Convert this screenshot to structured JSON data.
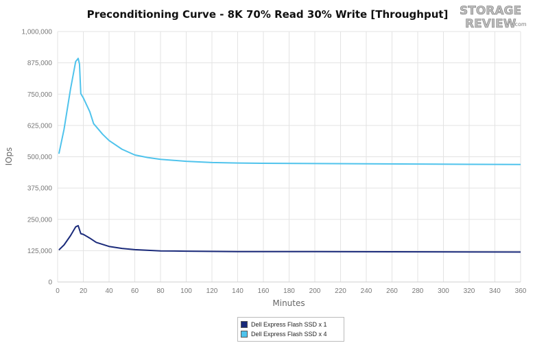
{
  "chart_data": {
    "type": "line",
    "title": "Preconditioning Curve - 8K 70% Read 30% Write [Throughput]",
    "xlabel": "Minutes",
    "ylabel": "IOps",
    "xlim": [
      0,
      360
    ],
    "ylim": [
      0,
      1000000
    ],
    "x_ticks": [
      0,
      20,
      40,
      60,
      80,
      100,
      120,
      140,
      160,
      180,
      200,
      220,
      240,
      260,
      280,
      300,
      320,
      340,
      360
    ],
    "y_ticks": [
      0,
      125000,
      250000,
      375000,
      500000,
      625000,
      750000,
      875000,
      1000000
    ],
    "x_tick_labels": [
      "0",
      "20",
      "40",
      "60",
      "80",
      "100",
      "120",
      "140",
      "160",
      "180",
      "200",
      "220",
      "240",
      "260",
      "280",
      "300",
      "320",
      "340",
      "360"
    ],
    "y_tick_labels": [
      "0",
      "125,000",
      "250,000",
      "375,000",
      "500,000",
      "625,000",
      "750,000",
      "875,000",
      "1,000,000"
    ],
    "grid": true,
    "legend_position": "bottom-center",
    "series": [
      {
        "name": "Dell Express Flash SSD x 1",
        "color": "#1a2a7a",
        "x": [
          1,
          5,
          10,
          14,
          16,
          18,
          20,
          25,
          30,
          40,
          50,
          60,
          80,
          100,
          140,
          200,
          260,
          320,
          360
        ],
        "y": [
          128000,
          148000,
          185000,
          220000,
          225000,
          193000,
          190000,
          175000,
          158000,
          142000,
          134000,
          129000,
          124000,
          123000,
          121500,
          121000,
          120500,
          120000,
          119500
        ]
      },
      {
        "name": "Dell Express Flash SSD x 4",
        "color": "#4fc3ec",
        "x": [
          1,
          5,
          10,
          14,
          16,
          17,
          18,
          20,
          25,
          28,
          30,
          35,
          40,
          50,
          60,
          70,
          80,
          100,
          120,
          140,
          160,
          200,
          240,
          280,
          320,
          360
        ],
        "y": [
          512000,
          610000,
          770000,
          880000,
          893000,
          870000,
          752000,
          735000,
          680000,
          632000,
          620000,
          590000,
          565000,
          530000,
          507000,
          497000,
          490000,
          482000,
          477000,
          475000,
          474000,
          473000,
          472000,
          471000,
          470000,
          469000
        ]
      }
    ]
  },
  "logo": {
    "line1": "STORAGE",
    "line2": "REVIEW",
    "suffix": ".com"
  }
}
